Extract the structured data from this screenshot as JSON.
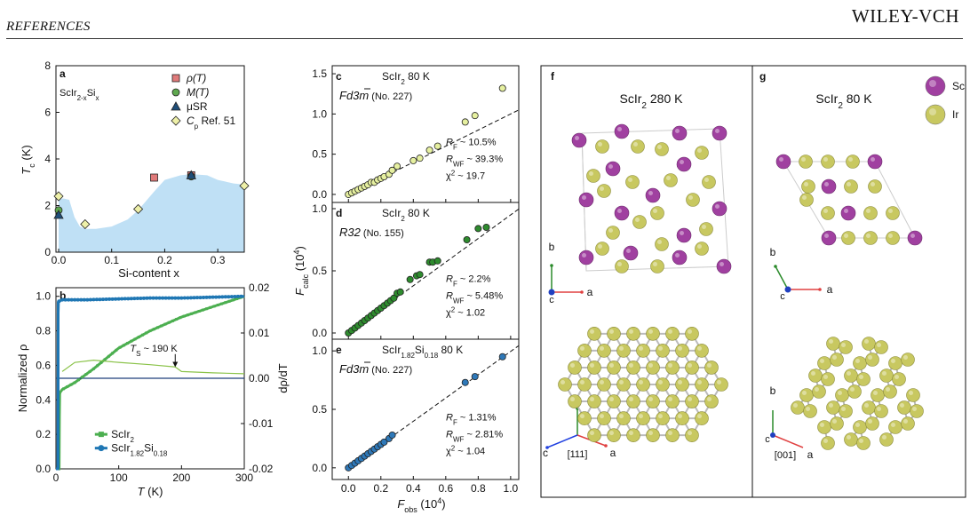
{
  "header": {
    "section": "REFERENCES",
    "publisher": "WILEY-VCH"
  },
  "chart_data": [
    {
      "id": "a",
      "type": "scatter",
      "panel_label": "a",
      "inset_label": "ScIr2-xSix",
      "xlabel": "Si-content x",
      "ylabel": "Tc (K)",
      "xlim": [
        -0.005,
        0.35
      ],
      "ylim": [
        0,
        8
      ],
      "xticks": [
        0.0,
        0.1,
        0.2,
        0.3
      ],
      "yticks": [
        0,
        2,
        4,
        6,
        8
      ],
      "series": [
        {
          "name": "ρ(T)",
          "marker": "square",
          "color": "#e07a7a",
          "points": [
            [
              0.18,
              3.2
            ],
            [
              0.25,
              3.3
            ]
          ]
        },
        {
          "name": "M(T)",
          "marker": "circle",
          "color": "#5fa84f",
          "points": [
            [
              0.0,
              1.8
            ],
            [
              0.25,
              3.25
            ]
          ]
        },
        {
          "name": "μSR",
          "marker": "triangle",
          "color": "#1f4e79",
          "points": [
            [
              0.0,
              1.6
            ],
            [
              0.25,
              3.3
            ]
          ]
        },
        {
          "name": "Cp Ref. 51",
          "marker": "diamond",
          "color": "#eef0a8",
          "points": [
            [
              0.0,
              2.4
            ],
            [
              0.05,
              1.2
            ],
            [
              0.15,
              1.85
            ],
            [
              0.35,
              2.85
            ]
          ]
        }
      ],
      "shaded_region": {
        "x": [
          0,
          0.01,
          0.02,
          0.03,
          0.04,
          0.05,
          0.07,
          0.1,
          0.13,
          0.15,
          0.18,
          0.2,
          0.23,
          0.25,
          0.28,
          0.3,
          0.33,
          0.35
        ],
        "y": [
          2.3,
          2.3,
          2.25,
          1.5,
          1.1,
          1.0,
          1.0,
          1.1,
          1.4,
          1.8,
          2.6,
          3.1,
          3.3,
          3.35,
          3.3,
          3.1,
          2.95,
          2.9
        ]
      }
    },
    {
      "id": "b",
      "type": "line",
      "panel_label": "b",
      "xlabel": "T (K)",
      "ylabel": "Normalized ρ",
      "y2label": "dρ/dT",
      "xlim": [
        0,
        300
      ],
      "ylim": [
        0,
        1.05
      ],
      "y2lim": [
        -0.02,
        0.02
      ],
      "xticks": [
        0,
        100,
        200,
        300
      ],
      "yticks": [
        0.0,
        0.2,
        0.4,
        0.6,
        0.8,
        1.0
      ],
      "y2ticks": [
        "0.02",
        "0.01",
        "0.00",
        "-0.01",
        "-0.02"
      ],
      "annotation": "TS ~ 190 K",
      "series": [
        {
          "name": "ScIr2",
          "color": "#4caf50",
          "x": [
            0,
            5,
            5.5,
            6,
            10,
            30,
            60,
            100,
            150,
            200,
            250,
            300
          ],
          "y": [
            0.0,
            0.0,
            0.3,
            0.44,
            0.46,
            0.5,
            0.58,
            0.7,
            0.8,
            0.88,
            0.94,
            1.0
          ]
        },
        {
          "name": "ScIr1.82Si0.18",
          "color": "#1f77b4",
          "x": [
            0,
            3,
            3.5,
            4,
            10,
            50,
            100,
            150,
            200,
            250,
            300
          ],
          "y": [
            0.0,
            0.0,
            0.9,
            0.97,
            0.98,
            0.98,
            0.985,
            0.99,
            0.99,
            0.995,
            1.0
          ]
        },
        {
          "name": "dρ/dT ScIr2",
          "color": "#8bc34a",
          "x": [
            10,
            30,
            60,
            100,
            150,
            190,
            200,
            250,
            300
          ],
          "y2": [
            0.0015,
            0.0035,
            0.004,
            0.0035,
            0.003,
            0.0025,
            0.0015,
            0.0012,
            0.001
          ]
        },
        {
          "name": "dρ/dT ScIr1.82Si0.18",
          "color": "#1f3f7a",
          "x": [
            0,
            100,
            200,
            300
          ],
          "y2": [
            0.0,
            0.0,
            0.0,
            0.0
          ]
        }
      ]
    },
    {
      "id": "c",
      "type": "scatter",
      "panel_label": "c",
      "title": "ScIr2 80 K",
      "spacegroup": "Fd3m",
      "sg_number": "(No. 227)",
      "xlim": [
        -0.1,
        1.05
      ],
      "ylim": [
        -0.1,
        1.6
      ],
      "yticks": [
        0.0,
        0.5,
        1.0,
        1.5
      ],
      "color": "#e6f0a0",
      "stats": [
        "RF ~ 10.5%",
        "RWF ~ 39.3%",
        "χ2 ~ 19.7"
      ],
      "points": [
        [
          0.0,
          0.0
        ],
        [
          0.02,
          0.02
        ],
        [
          0.04,
          0.04
        ],
        [
          0.06,
          0.06
        ],
        [
          0.08,
          0.08
        ],
        [
          0.1,
          0.1
        ],
        [
          0.12,
          0.12
        ],
        [
          0.14,
          0.15
        ],
        [
          0.16,
          0.15
        ],
        [
          0.18,
          0.18
        ],
        [
          0.2,
          0.2
        ],
        [
          0.22,
          0.22
        ],
        [
          0.25,
          0.25
        ],
        [
          0.27,
          0.3
        ],
        [
          0.3,
          0.35
        ],
        [
          0.4,
          0.42
        ],
        [
          0.44,
          0.45
        ],
        [
          0.5,
          0.55
        ],
        [
          0.55,
          0.6
        ],
        [
          0.72,
          0.9
        ],
        [
          0.78,
          0.98
        ],
        [
          0.95,
          1.32
        ]
      ]
    },
    {
      "id": "d",
      "type": "scatter",
      "panel_label": "d",
      "title": "ScIr2 80 K",
      "spacegroup": "R32",
      "sg_number": "(No. 155)",
      "ylabel": "Fcalc (10^4)",
      "xlim": [
        -0.1,
        1.05
      ],
      "ylim": [
        -0.05,
        1.05
      ],
      "yticks": [
        0.0,
        0.5,
        1.0
      ],
      "color": "#2e8b2e",
      "stats": [
        "RF ~ 2.2%",
        "RWF ~ 5.48%",
        "χ2 ~ 1.02"
      ],
      "points": [
        [
          0.0,
          0.0
        ],
        [
          0.02,
          0.02
        ],
        [
          0.04,
          0.04
        ],
        [
          0.06,
          0.06
        ],
        [
          0.08,
          0.08
        ],
        [
          0.1,
          0.1
        ],
        [
          0.12,
          0.12
        ],
        [
          0.14,
          0.14
        ],
        [
          0.16,
          0.16
        ],
        [
          0.18,
          0.18
        ],
        [
          0.2,
          0.2
        ],
        [
          0.22,
          0.22
        ],
        [
          0.24,
          0.24
        ],
        [
          0.26,
          0.26
        ],
        [
          0.28,
          0.28
        ],
        [
          0.3,
          0.32
        ],
        [
          0.32,
          0.33
        ],
        [
          0.38,
          0.43
        ],
        [
          0.42,
          0.46
        ],
        [
          0.44,
          0.47
        ],
        [
          0.5,
          0.57
        ],
        [
          0.52,
          0.57
        ],
        [
          0.55,
          0.58
        ],
        [
          0.73,
          0.75
        ],
        [
          0.8,
          0.84
        ],
        [
          0.85,
          0.85
        ]
      ]
    },
    {
      "id": "e",
      "type": "scatter",
      "panel_label": "e",
      "title": "ScIr1.82Si0.18 80 K",
      "spacegroup": "Fd3m",
      "sg_number": "(No. 227)",
      "xlabel": "Fobs (10^4)",
      "xlim": [
        -0.1,
        1.05
      ],
      "ylim": [
        -0.1,
        1.1
      ],
      "yticks": [
        0.0,
        0.5,
        1.0
      ],
      "xticks": [
        0.0,
        0.2,
        0.4,
        0.6,
        0.8,
        1.0
      ],
      "color": "#2e78b8",
      "stats": [
        "RF ~ 1.31%",
        "RWF ~ 2.81%",
        "χ2 ~ 1.04"
      ],
      "points": [
        [
          0.0,
          0.0
        ],
        [
          0.02,
          0.02
        ],
        [
          0.04,
          0.04
        ],
        [
          0.06,
          0.06
        ],
        [
          0.08,
          0.08
        ],
        [
          0.1,
          0.1
        ],
        [
          0.12,
          0.12
        ],
        [
          0.14,
          0.14
        ],
        [
          0.16,
          0.16
        ],
        [
          0.18,
          0.18
        ],
        [
          0.2,
          0.2
        ],
        [
          0.22,
          0.22
        ],
        [
          0.25,
          0.25
        ],
        [
          0.27,
          0.28
        ],
        [
          0.72,
          0.73
        ],
        [
          0.78,
          0.78
        ],
        [
          0.95,
          0.95
        ]
      ]
    }
  ],
  "structures": {
    "f": {
      "panel_label": "f",
      "title": "ScIr2  280 K",
      "axis_top": [
        "b",
        "a",
        "c"
      ],
      "axis_bottom": [
        "b",
        "a",
        "c"
      ],
      "direction": "[111]"
    },
    "g": {
      "panel_label": "g",
      "title": "ScIr2  80 K",
      "axis_top": [
        "b",
        "a",
        "c"
      ],
      "axis_bottom": [
        "b",
        "a",
        "c"
      ],
      "direction": "[001]",
      "legend": [
        {
          "label": "Sc",
          "color": "#a040a0"
        },
        {
          "label": "Ir",
          "color": "#c8c860"
        }
      ]
    }
  }
}
